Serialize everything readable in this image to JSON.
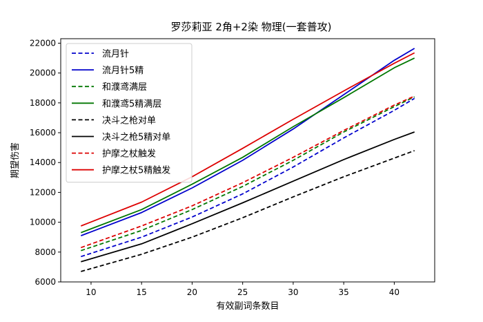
{
  "chart_data": {
    "type": "line",
    "title": "罗莎莉亚 2角+2染 物理(一套普攻)",
    "xlabel": "有效副词条数目",
    "ylabel": "期望伤害",
    "xlim": [
      7,
      44
    ],
    "ylim": [
      6000,
      22300
    ],
    "xticks": [
      10,
      15,
      20,
      25,
      30,
      35,
      40
    ],
    "yticks": [
      6000,
      8000,
      10000,
      12000,
      14000,
      16000,
      18000,
      20000,
      22000
    ],
    "x": [
      9,
      42
    ],
    "legend_position": "upper-left",
    "series": [
      {
        "name": "流月针",
        "color": "#0000cc",
        "style": "dashed",
        "points": [
          [
            9,
            7700
          ],
          [
            15,
            9000
          ],
          [
            20,
            10350
          ],
          [
            25,
            11900
          ],
          [
            30,
            13700
          ],
          [
            35,
            15650
          ],
          [
            40,
            17500
          ],
          [
            42,
            18300
          ]
        ]
      },
      {
        "name": "流月针5精",
        "color": "#0000cc",
        "style": "solid",
        "points": [
          [
            9,
            9100
          ],
          [
            15,
            10650
          ],
          [
            20,
            12300
          ],
          [
            25,
            14150
          ],
          [
            30,
            16250
          ],
          [
            35,
            18550
          ],
          [
            40,
            20850
          ],
          [
            42,
            21650
          ]
        ]
      },
      {
        "name": "和濮鸢满层",
        "color": "#007700",
        "style": "dashed",
        "points": [
          [
            9,
            8100
          ],
          [
            15,
            9450
          ],
          [
            20,
            10850
          ],
          [
            25,
            12400
          ],
          [
            30,
            14150
          ],
          [
            35,
            16050
          ],
          [
            40,
            17750
          ],
          [
            42,
            18400
          ]
        ]
      },
      {
        "name": "和濮鸢5精满层",
        "color": "#007700",
        "style": "solid",
        "points": [
          [
            9,
            9300
          ],
          [
            15,
            10850
          ],
          [
            20,
            12550
          ],
          [
            25,
            14350
          ],
          [
            30,
            16400
          ],
          [
            35,
            18350
          ],
          [
            40,
            20350
          ],
          [
            42,
            21000
          ]
        ]
      },
      {
        "name": "决斗之枪对单",
        "color": "#000000",
        "style": "dashed",
        "points": [
          [
            9,
            6700
          ],
          [
            15,
            7850
          ],
          [
            20,
            9000
          ],
          [
            25,
            10300
          ],
          [
            30,
            11700
          ],
          [
            35,
            13050
          ],
          [
            40,
            14300
          ],
          [
            42,
            14800
          ]
        ]
      },
      {
        "name": "决斗之枪5精对单",
        "color": "#000000",
        "style": "solid",
        "points": [
          [
            9,
            7350
          ],
          [
            15,
            8550
          ],
          [
            20,
            9900
          ],
          [
            25,
            11300
          ],
          [
            30,
            12750
          ],
          [
            35,
            14200
          ],
          [
            40,
            15550
          ],
          [
            42,
            16050
          ]
        ]
      },
      {
        "name": "护摩之杖触发",
        "color": "#dd0000",
        "style": "dashed",
        "points": [
          [
            9,
            8300
          ],
          [
            15,
            9750
          ],
          [
            20,
            11100
          ],
          [
            25,
            12650
          ],
          [
            30,
            14350
          ],
          [
            35,
            16150
          ],
          [
            40,
            17850
          ],
          [
            42,
            18450
          ]
        ]
      },
      {
        "name": "护摩之杖5精触发",
        "color": "#dd0000",
        "style": "solid",
        "points": [
          [
            9,
            9750
          ],
          [
            15,
            11350
          ],
          [
            20,
            13050
          ],
          [
            25,
            14950
          ],
          [
            30,
            16900
          ],
          [
            35,
            18800
          ],
          [
            40,
            20650
          ],
          [
            42,
            21350
          ]
        ]
      }
    ]
  }
}
